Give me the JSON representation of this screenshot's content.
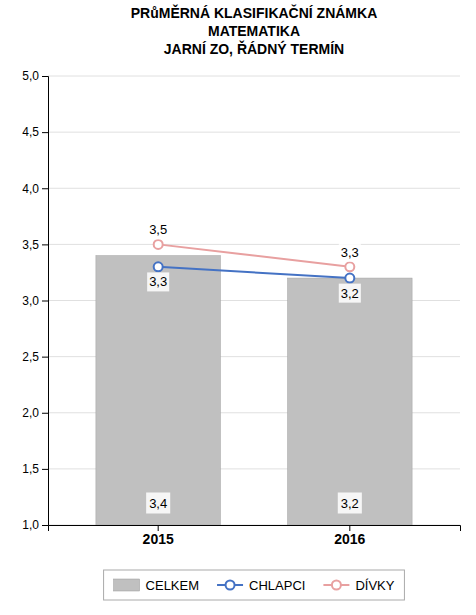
{
  "chart_data": {
    "type": "bar",
    "title": "PRůMĚRNÁ KLASIFIKAČNÍ ZNÁMKA\nMATEMATIKA\nJARNÍ ZO, ŘÁDNÝ TERMÍN",
    "categories": [
      "2015",
      "2016"
    ],
    "series": [
      {
        "name": "CELKEM",
        "type": "bar",
        "color": "#C0C0C0",
        "values": [
          3.4,
          3.2
        ],
        "value_labels": [
          "3,4",
          "3,2"
        ]
      },
      {
        "name": "CHLAPCI",
        "type": "line",
        "color": "#4472C4",
        "marker": "circle",
        "line_style": "solid",
        "values": [
          3.3,
          3.2
        ],
        "value_labels": [
          "3,3",
          "3,2"
        ]
      },
      {
        "name": "DÍVKY",
        "type": "line",
        "color": "#E8A0A0",
        "marker": "circle",
        "line_style": "solid",
        "values": [
          3.5,
          3.3
        ],
        "value_labels": [
          "3,5",
          "3,3"
        ]
      }
    ],
    "ylim": [
      1.0,
      5.0
    ],
    "yticks": [
      {
        "value": 1.0,
        "label": "1,0"
      },
      {
        "value": 1.5,
        "label": "1,5"
      },
      {
        "value": 2.0,
        "label": "2,0"
      },
      {
        "value": 2.5,
        "label": "2,5"
      },
      {
        "value": 3.0,
        "label": "3,0"
      },
      {
        "value": 3.5,
        "label": "3,5"
      },
      {
        "value": 4.0,
        "label": "4,0"
      },
      {
        "value": 4.5,
        "label": "4,5"
      },
      {
        "value": 5.0,
        "label": "5,0"
      }
    ],
    "grid": true,
    "legend": "bottom",
    "data_labels": true
  }
}
